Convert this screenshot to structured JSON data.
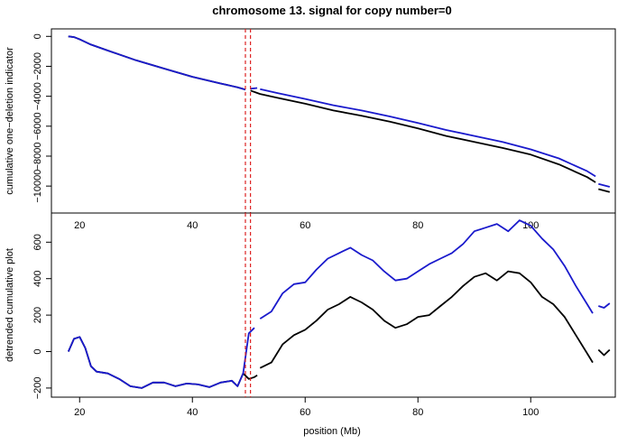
{
  "chart_data": [
    {
      "type": "line",
      "title": "chromosome 13. signal for copy number=0",
      "xlabel": "",
      "ylabel": "cumulative one−deletion indicator",
      "xlim": [
        15,
        115
      ],
      "ylim": [
        -11800,
        500
      ],
      "xticks": [
        20,
        40,
        60,
        80,
        100
      ],
      "yticks": [
        0,
        -2000,
        -4000,
        -6000,
        -8000,
        -10000
      ],
      "ytick_labels": [
        "0",
        "−2000",
        "−4000",
        "−6000",
        "−8000",
        "−10000"
      ],
      "vlines": [
        49.4,
        50.3
      ],
      "vline_color": "#dd2222",
      "series": [
        {
          "color": "#000000",
          "segments": [
            [
              [
                18,
                0
              ],
              [
                19,
                -50
              ],
              [
                20,
                -200
              ],
              [
                22,
                -550
              ],
              [
                25,
                -950
              ],
              [
                30,
                -1600
              ],
              [
                35,
                -2150
              ],
              [
                40,
                -2700
              ],
              [
                45,
                -3150
              ],
              [
                48,
                -3400
              ],
              [
                49.4,
                -3550
              ]
            ],
            [
              [
                50.3,
                -3620
              ],
              [
                51.5,
                -3780
              ],
              [
                52,
                -3850
              ],
              [
                55,
                -4100
              ],
              [
                60,
                -4500
              ],
              [
                65,
                -4950
              ],
              [
                70,
                -5300
              ],
              [
                75,
                -5700
              ],
              [
                80,
                -6150
              ],
              [
                85,
                -6650
              ],
              [
                90,
                -7050
              ],
              [
                95,
                -7450
              ],
              [
                100,
                -7900
              ],
              [
                105,
                -8550
              ],
              [
                110,
                -9400
              ],
              [
                111.5,
                -9750
              ]
            ],
            [
              [
                112,
                -10200
              ],
              [
                114,
                -10400
              ]
            ]
          ]
        },
        {
          "color": "#1a1acc",
          "segments": [
            [
              [
                18,
                0
              ],
              [
                19,
                -50
              ],
              [
                20,
                -200
              ],
              [
                22,
                -550
              ],
              [
                25,
                -950
              ],
              [
                30,
                -1600
              ],
              [
                35,
                -2150
              ],
              [
                40,
                -2700
              ],
              [
                45,
                -3150
              ],
              [
                48,
                -3400
              ],
              [
                49.4,
                -3550
              ]
            ],
            [
              [
                50.3,
                -3500
              ],
              [
                51.5,
                -3450
              ]
            ],
            [
              [
                52,
                -3520
              ],
              [
                55,
                -3780
              ],
              [
                60,
                -4180
              ],
              [
                65,
                -4600
              ],
              [
                70,
                -4950
              ],
              [
                75,
                -5350
              ],
              [
                80,
                -5780
              ],
              [
                85,
                -6250
              ],
              [
                90,
                -6650
              ],
              [
                95,
                -7050
              ],
              [
                100,
                -7550
              ],
              [
                105,
                -8150
              ],
              [
                110,
                -9000
              ],
              [
                111.5,
                -9350
              ]
            ],
            [
              [
                112,
                -9850
              ],
              [
                114,
                -10050
              ]
            ]
          ]
        }
      ]
    },
    {
      "type": "line",
      "title": "",
      "xlabel": "position (Mb)",
      "ylabel": "detrended cumulative plot",
      "xlim": [
        15,
        115
      ],
      "ylim": [
        -250,
        760
      ],
      "xticks": [
        20,
        40,
        60,
        80,
        100
      ],
      "yticks": [
        -200,
        0,
        200,
        400,
        600
      ],
      "ytick_labels": [
        "−200",
        "0",
        "200",
        "400",
        "600"
      ],
      "vlines": [
        49.4,
        50.3
      ],
      "vline_color": "#dd2222",
      "series": [
        {
          "color": "#000000",
          "segments": [
            [
              [
                18,
                0
              ],
              [
                19,
                70
              ],
              [
                20,
                80
              ],
              [
                21,
                20
              ],
              [
                22,
                -80
              ],
              [
                23,
                -110
              ],
              [
                25,
                -120
              ],
              [
                27,
                -150
              ],
              [
                29,
                -190
              ],
              [
                31,
                -200
              ],
              [
                33,
                -170
              ],
              [
                35,
                -170
              ],
              [
                37,
                -190
              ],
              [
                39,
                -175
              ],
              [
                41,
                -180
              ],
              [
                43,
                -195
              ],
              [
                45,
                -170
              ],
              [
                47,
                -160
              ],
              [
                48,
                -190
              ],
              [
                49,
                -120
              ],
              [
                50,
                -150
              ],
              [
                51,
                -140
              ],
              [
                51.5,
                -130
              ]
            ],
            [
              [
                52,
                -90
              ],
              [
                54,
                -60
              ],
              [
                56,
                40
              ],
              [
                58,
                90
              ],
              [
                60,
                120
              ],
              [
                62,
                170
              ],
              [
                64,
                230
              ],
              [
                66,
                260
              ],
              [
                68,
                300
              ],
              [
                70,
                270
              ],
              [
                72,
                230
              ],
              [
                74,
                170
              ],
              [
                76,
                130
              ],
              [
                78,
                150
              ],
              [
                80,
                190
              ],
              [
                82,
                200
              ],
              [
                84,
                250
              ],
              [
                86,
                300
              ],
              [
                88,
                360
              ],
              [
                90,
                410
              ],
              [
                92,
                430
              ],
              [
                94,
                390
              ],
              [
                96,
                440
              ],
              [
                98,
                430
              ],
              [
                100,
                380
              ],
              [
                102,
                300
              ],
              [
                104,
                260
              ],
              [
                106,
                190
              ],
              [
                108,
                90
              ],
              [
                110,
                -10
              ],
              [
                111,
                -60
              ]
            ],
            [
              [
                112,
                10
              ],
              [
                113,
                -20
              ],
              [
                114,
                10
              ]
            ]
          ]
        },
        {
          "color": "#1a1acc",
          "segments": [
            [
              [
                18,
                0
              ],
              [
                19,
                70
              ],
              [
                20,
                80
              ],
              [
                21,
                20
              ],
              [
                22,
                -80
              ],
              [
                23,
                -110
              ],
              [
                25,
                -120
              ],
              [
                27,
                -150
              ],
              [
                29,
                -190
              ],
              [
                31,
                -200
              ],
              [
                33,
                -170
              ],
              [
                35,
                -170
              ],
              [
                37,
                -190
              ],
              [
                39,
                -175
              ],
              [
                41,
                -180
              ],
              [
                43,
                -195
              ],
              [
                45,
                -170
              ],
              [
                47,
                -160
              ],
              [
                48,
                -190
              ],
              [
                49,
                -120
              ],
              [
                50,
                100
              ],
              [
                51,
                130
              ]
            ],
            [
              [
                52,
                180
              ],
              [
                54,
                220
              ],
              [
                56,
                320
              ],
              [
                58,
                370
              ],
              [
                60,
                380
              ],
              [
                62,
                450
              ],
              [
                64,
                510
              ],
              [
                66,
                540
              ],
              [
                68,
                570
              ],
              [
                70,
                530
              ],
              [
                72,
                500
              ],
              [
                74,
                440
              ],
              [
                76,
                390
              ],
              [
                78,
                400
              ],
              [
                80,
                440
              ],
              [
                82,
                480
              ],
              [
                84,
                510
              ],
              [
                86,
                540
              ],
              [
                88,
                590
              ],
              [
                90,
                660
              ],
              [
                92,
                680
              ],
              [
                94,
                700
              ],
              [
                96,
                660
              ],
              [
                98,
                720
              ],
              [
                100,
                690
              ],
              [
                102,
                620
              ],
              [
                104,
                560
              ],
              [
                106,
                470
              ],
              [
                108,
                360
              ],
              [
                110,
                260
              ],
              [
                111,
                210
              ]
            ],
            [
              [
                112,
                250
              ],
              [
                113,
                240
              ],
              [
                114,
                265
              ]
            ]
          ]
        }
      ]
    }
  ]
}
